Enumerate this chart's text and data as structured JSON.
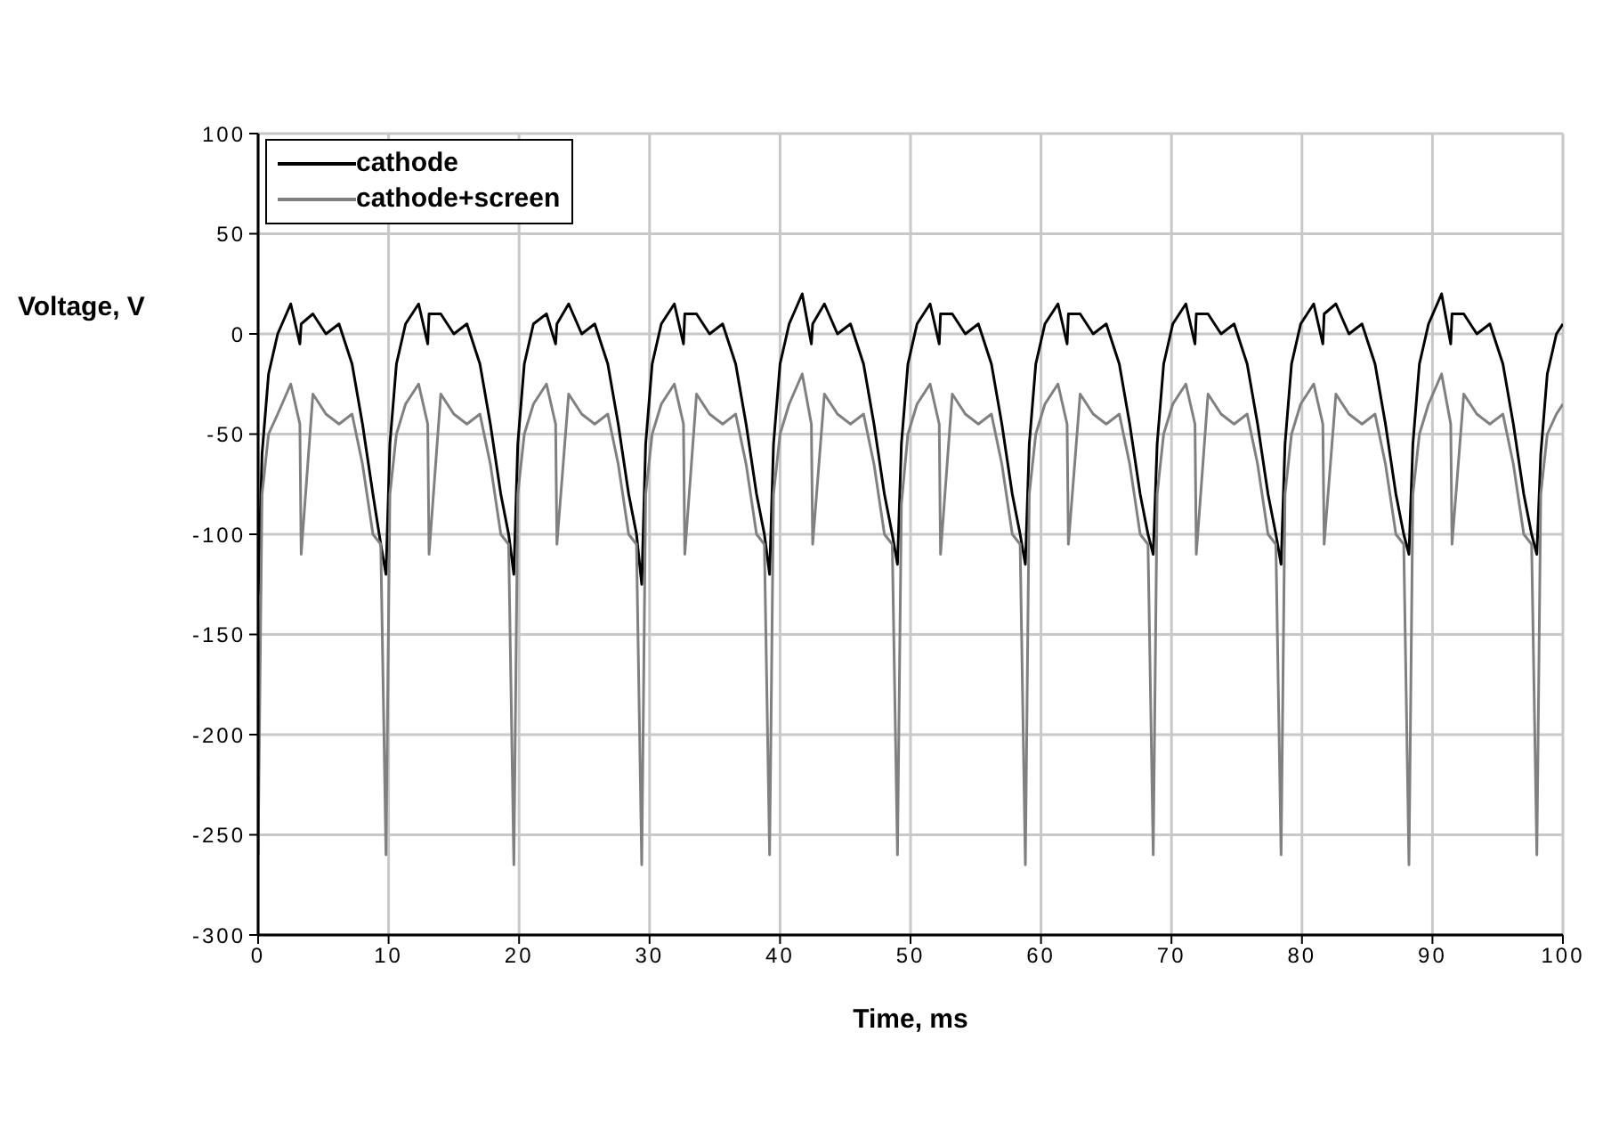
{
  "chart_data": {
    "type": "line",
    "xlabel": "Time, ms",
    "ylabel": "Voltage, V",
    "x": [
      0,
      0.3,
      0.8,
      1.5,
      2.5,
      3.2,
      3.3,
      4.2,
      5.2,
      6.2,
      7.2,
      8.0,
      8.8,
      9.4,
      9.8,
      10.1,
      10.6,
      11.3,
      12.3,
      13.0,
      13.1,
      14.0,
      15.0,
      16.0,
      17.0,
      17.8,
      18.6,
      19.2,
      19.6,
      19.9,
      20.4,
      21.1,
      22.1,
      22.8,
      22.9,
      23.8,
      24.8,
      25.8,
      26.8,
      27.6,
      28.4,
      29.0,
      29.4,
      29.7,
      30.2,
      30.9,
      31.9,
      32.6,
      32.7,
      33.6,
      34.6,
      35.6,
      36.6,
      37.4,
      38.2,
      38.8,
      39.2,
      39.5,
      40.0,
      40.7,
      41.7,
      42.4,
      42.5,
      43.4,
      44.4,
      45.4,
      46.4,
      47.2,
      48.0,
      48.6,
      49.0,
      49.3,
      49.8,
      50.5,
      51.5,
      52.2,
      52.3,
      53.2,
      54.2,
      55.2,
      56.2,
      57.0,
      57.8,
      58.4,
      58.8,
      59.1,
      59.6,
      60.3,
      61.3,
      62.0,
      62.1,
      63.0,
      64.0,
      65.0,
      66.0,
      66.8,
      67.6,
      68.2,
      68.6,
      68.9,
      69.4,
      70.1,
      71.1,
      71.8,
      71.9,
      72.8,
      73.8,
      74.8,
      75.8,
      76.6,
      77.4,
      78.0,
      78.4,
      78.7,
      79.2,
      79.9,
      80.9,
      81.6,
      81.7,
      82.6,
      83.6,
      84.6,
      85.6,
      86.4,
      87.2,
      87.8,
      88.2,
      88.5,
      89.0,
      89.7,
      90.7,
      91.4,
      91.5,
      92.4,
      93.4,
      94.4,
      95.4,
      96.2,
      97.0,
      97.6,
      98.0,
      98.3,
      98.8,
      99.5,
      100
    ],
    "series": [
      {
        "name": "cathode",
        "color": "#000000",
        "values": [
          -130,
          -60,
          -20,
          0,
          15,
          -5,
          5,
          10,
          0,
          5,
          -15,
          -45,
          -80,
          -105,
          -120,
          -55,
          -15,
          5,
          15,
          -5,
          10,
          10,
          0,
          5,
          -15,
          -45,
          -80,
          -100,
          -120,
          -55,
          -15,
          5,
          10,
          -5,
          5,
          15,
          0,
          5,
          -15,
          -45,
          -80,
          -100,
          -125,
          -55,
          -15,
          5,
          15,
          -5,
          10,
          10,
          0,
          5,
          -15,
          -45,
          -80,
          -100,
          -120,
          -55,
          -15,
          5,
          20,
          -5,
          5,
          15,
          0,
          5,
          -15,
          -45,
          -80,
          -100,
          -115,
          -55,
          -15,
          5,
          15,
          -5,
          10,
          10,
          0,
          5,
          -15,
          -45,
          -80,
          -100,
          -115,
          -55,
          -15,
          5,
          15,
          -5,
          10,
          10,
          0,
          5,
          -15,
          -45,
          -80,
          -100,
          -110,
          -55,
          -15,
          5,
          15,
          -5,
          10,
          10,
          0,
          5,
          -15,
          -45,
          -80,
          -100,
          -115,
          -55,
          -15,
          5,
          15,
          -5,
          10,
          15,
          0,
          5,
          -15,
          -45,
          -80,
          -100,
          -110,
          -55,
          -15,
          5,
          20,
          -5,
          10,
          10,
          0,
          5,
          -15,
          -45,
          -80,
          -100,
          -110,
          -60,
          -20,
          0,
          5
        ]
      },
      {
        "name": "cathode+screen",
        "color": "#808080",
        "values": [
          -260,
          -80,
          -50,
          -40,
          -25,
          -45,
          -110,
          -30,
          -40,
          -45,
          -40,
          -65,
          -100,
          -105,
          -260,
          -80,
          -50,
          -35,
          -25,
          -45,
          -110,
          -30,
          -40,
          -45,
          -40,
          -65,
          -100,
          -105,
          -265,
          -80,
          -50,
          -35,
          -25,
          -45,
          -105,
          -30,
          -40,
          -45,
          -40,
          -65,
          -100,
          -105,
          -265,
          -80,
          -50,
          -35,
          -25,
          -45,
          -110,
          -30,
          -40,
          -45,
          -40,
          -65,
          -100,
          -105,
          -260,
          -80,
          -50,
          -35,
          -20,
          -45,
          -105,
          -30,
          -40,
          -45,
          -40,
          -65,
          -100,
          -105,
          -260,
          -85,
          -50,
          -35,
          -25,
          -45,
          -110,
          -30,
          -40,
          -45,
          -40,
          -65,
          -100,
          -105,
          -265,
          -80,
          -50,
          -35,
          -25,
          -45,
          -105,
          -30,
          -40,
          -45,
          -40,
          -65,
          -100,
          -105,
          -260,
          -80,
          -50,
          -35,
          -25,
          -45,
          -110,
          -30,
          -40,
          -45,
          -40,
          -65,
          -100,
          -105,
          -260,
          -80,
          -50,
          -35,
          -25,
          -45,
          -105,
          -30,
          -40,
          -45,
          -40,
          -65,
          -100,
          -105,
          -265,
          -80,
          -50,
          -35,
          -20,
          -45,
          -105,
          -30,
          -40,
          -45,
          -40,
          -65,
          -100,
          -105,
          -260,
          -80,
          -50,
          -40,
          -35
        ]
      }
    ],
    "xlim": [
      0,
      100
    ],
    "xticks": [
      0,
      10,
      20,
      30,
      40,
      50,
      60,
      70,
      80,
      90,
      100
    ],
    "ylim": [
      -300,
      100
    ],
    "yticks": [
      -300,
      -250,
      -200,
      -150,
      -100,
      -50,
      0,
      50,
      100
    ],
    "grid": true,
    "legend": "top left",
    "marker": "none",
    "line_style": "solid"
  }
}
